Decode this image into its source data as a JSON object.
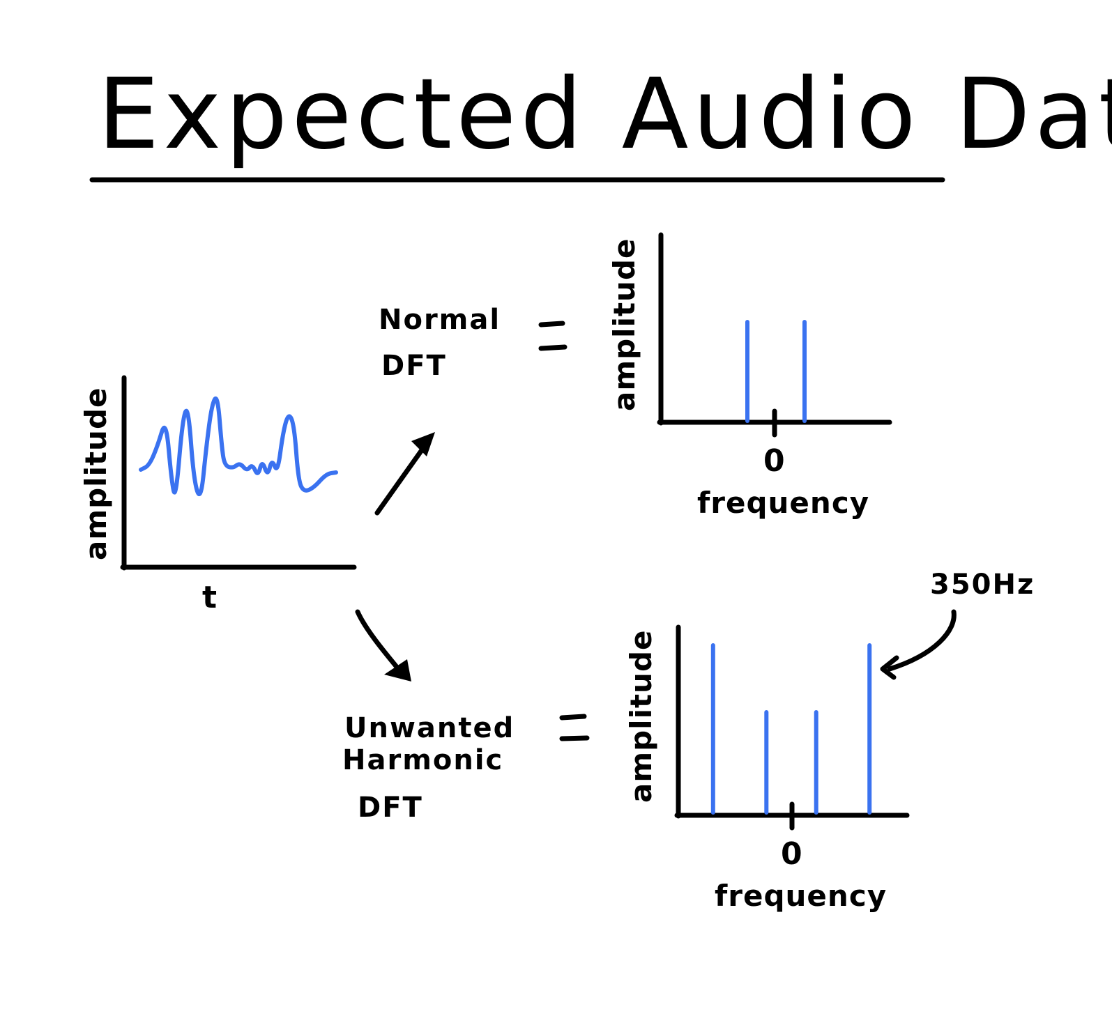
{
  "title": "Expected Audio Data",
  "colors": {
    "ink": "#000000",
    "signal": "#3a72f0"
  },
  "time_plot": {
    "ylabel": "amplitude",
    "xlabel": "t"
  },
  "normal": {
    "label_line1": "Normal",
    "label_line2": "DFT",
    "equals": "=",
    "ylabel": "amplitude",
    "xlabel": "frequency",
    "zero_tick": "0"
  },
  "harmonic": {
    "label_line1": "Unwanted",
    "label_line2": "Harmonic",
    "label_line3": "DFT",
    "equals": "=",
    "ylabel": "amplitude",
    "xlabel": "frequency",
    "zero_tick": "0",
    "annotation": "350Hz"
  },
  "chart_data": [
    {
      "type": "line",
      "xlabel": "t",
      "ylabel": "amplitude",
      "description_free": true
    },
    {
      "type": "bar",
      "xlabel": "frequency",
      "ylabel": "amplitude",
      "x": [
        -1,
        1
      ],
      "values": [
        1,
        1
      ],
      "zero_tick": "0"
    },
    {
      "type": "bar",
      "xlabel": "frequency",
      "ylabel": "amplitude",
      "x": [
        -2.2,
        -0.7,
        0.7,
        2.2
      ],
      "values": [
        1,
        0.6,
        0.6,
        1
      ],
      "zero_tick": "0",
      "annotation": "350Hz"
    }
  ]
}
